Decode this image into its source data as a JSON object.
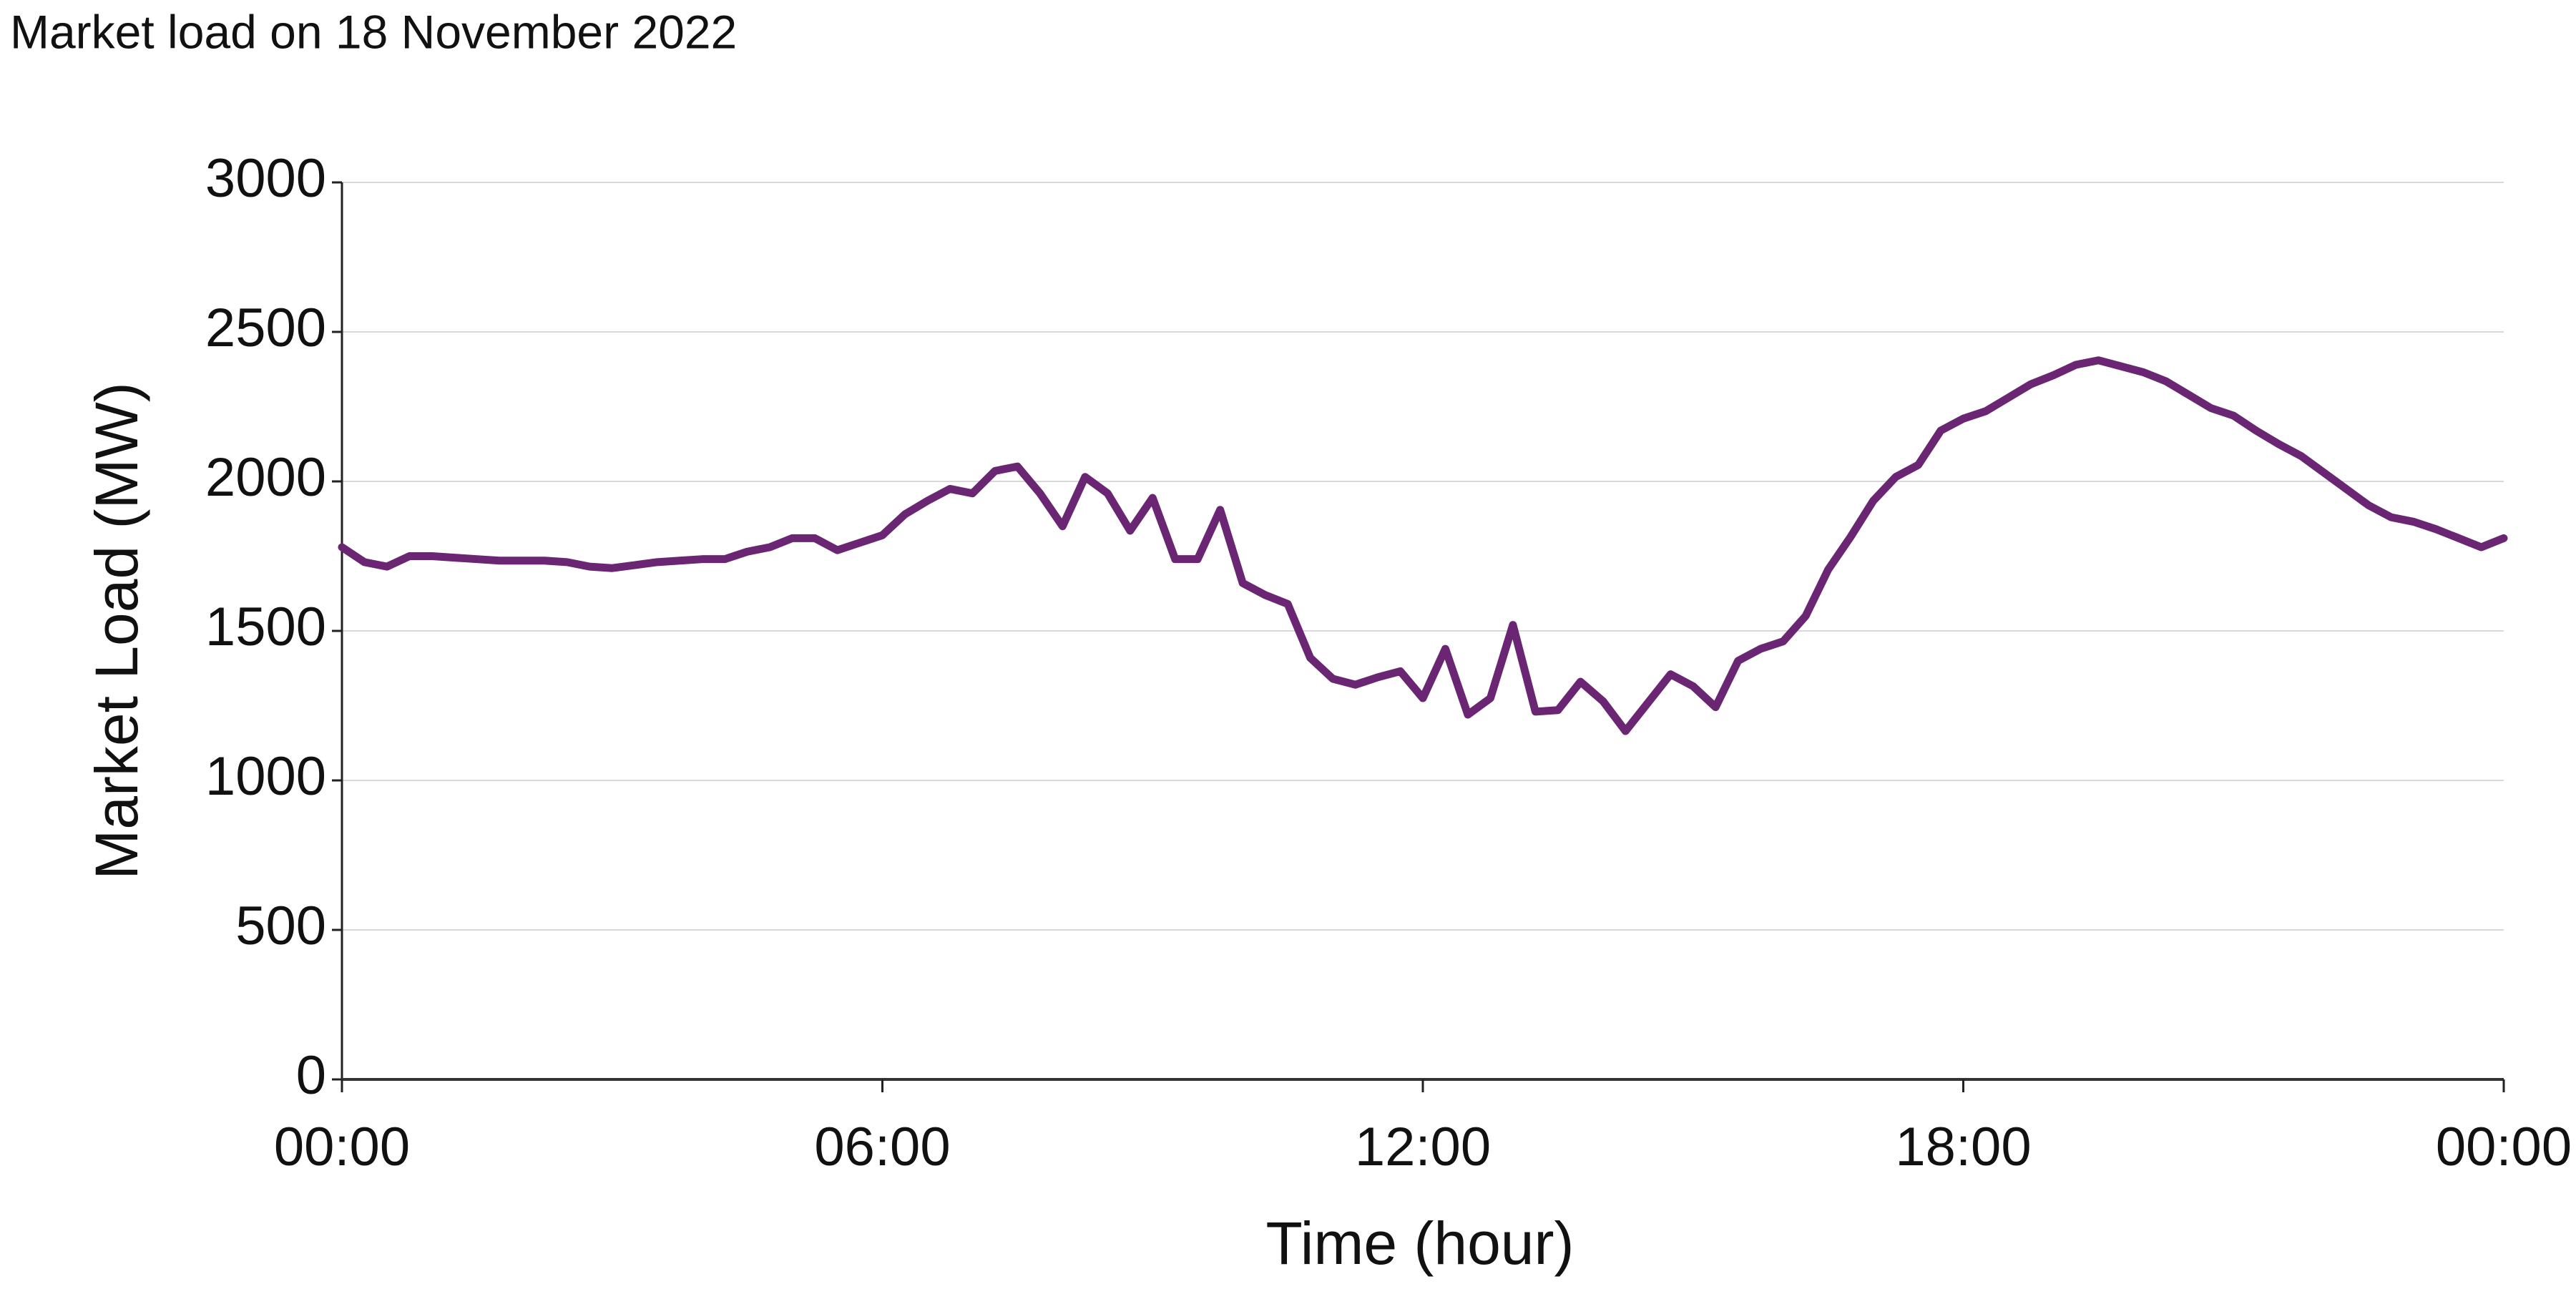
{
  "chart_data": {
    "type": "line",
    "title": "Market load on 18 November 2022",
    "xlabel": "Time (hour)",
    "ylabel": "Market Load (MW)",
    "x": [
      0,
      0.25,
      0.5,
      0.75,
      1,
      1.25,
      1.5,
      1.75,
      2,
      2.25,
      2.5,
      2.75,
      3,
      3.25,
      3.5,
      3.75,
      4,
      4.25,
      4.5,
      4.75,
      5,
      5.25,
      5.5,
      5.75,
      6,
      6.25,
      6.5,
      6.75,
      7,
      7.25,
      7.5,
      7.75,
      8,
      8.25,
      8.5,
      8.75,
      9,
      9.25,
      9.5,
      9.75,
      10,
      10.25,
      10.5,
      10.75,
      11,
      11.25,
      11.5,
      11.75,
      12,
      12.25,
      12.5,
      12.75,
      13,
      13.25,
      13.5,
      13.75,
      14,
      14.25,
      14.5,
      14.75,
      15,
      15.25,
      15.5,
      15.75,
      16,
      16.25,
      16.5,
      16.75,
      17,
      17.25,
      17.5,
      17.75,
      18,
      18.25,
      18.5,
      18.75,
      19,
      19.25,
      19.5,
      19.75,
      20,
      20.25,
      20.5,
      20.75,
      21,
      21.25,
      21.5,
      21.75,
      22,
      22.25,
      22.5,
      22.75,
      23,
      23.25,
      23.5,
      23.75,
      24
    ],
    "series": [
      {
        "name": "Market load",
        "color": "#6a2573",
        "values": [
          1780,
          1730,
          1715,
          1750,
          1750,
          1745,
          1740,
          1735,
          1735,
          1735,
          1730,
          1715,
          1710,
          1720,
          1730,
          1735,
          1740,
          1740,
          1765,
          1780,
          1810,
          1810,
          1770,
          1795,
          1820,
          1890,
          1935,
          1975,
          1960,
          2035,
          2050,
          1960,
          1850,
          2015,
          1960,
          1835,
          1945,
          1740,
          1740,
          1905,
          1660,
          1620,
          1590,
          1410,
          1340,
          1320,
          1345,
          1365,
          1275,
          1440,
          1220,
          1275,
          1520,
          1230,
          1235,
          1330,
          1265,
          1165,
          1260,
          1355,
          1315,
          1245,
          1400,
          1440,
          1465,
          1550,
          1705,
          1815,
          1935,
          2015,
          2055,
          2170,
          2210,
          2235,
          2280,
          2325,
          2355,
          2390,
          2405,
          2385,
          2365,
          2335,
          2290,
          2245,
          2220,
          2170,
          2125,
          2085,
          2030,
          1975,
          1920,
          1880,
          1865,
          1840,
          1810,
          1780,
          1810
        ]
      }
    ],
    "xlim": [
      0,
      24
    ],
    "xticks": [
      {
        "value": 0,
        "label": "00:00"
      },
      {
        "value": 6,
        "label": "06:00"
      },
      {
        "value": 12,
        "label": "12:00"
      },
      {
        "value": 18,
        "label": "18:00"
      },
      {
        "value": 24,
        "label": "00:00"
      }
    ],
    "ylim": [
      0,
      3000
    ],
    "yticks": [
      0,
      500,
      1000,
      1500,
      2000,
      2500,
      3000
    ],
    "grid": true
  }
}
